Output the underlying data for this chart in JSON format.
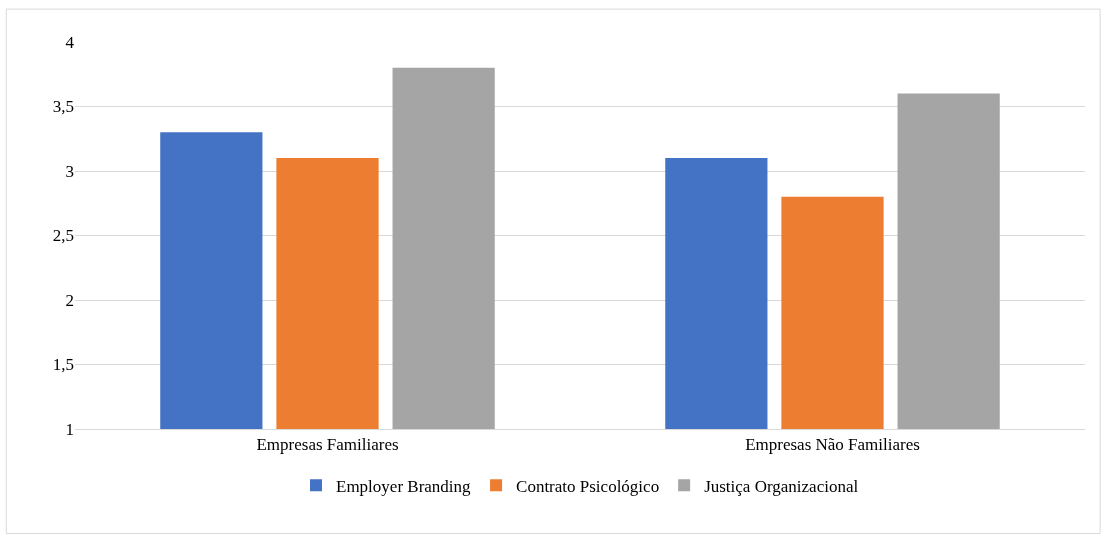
{
  "chart_data": {
    "type": "bar",
    "categories": [
      "Empresas Familiares",
      "Empresas Não Familiares"
    ],
    "series": [
      {
        "name": "Employer Branding",
        "color": "#4472c4",
        "values": [
          3.3,
          3.1
        ]
      },
      {
        "name": "Contrato Psicológico",
        "color": "#ed7d31",
        "values": [
          3.1,
          2.8
        ]
      },
      {
        "name": "Justiça Organizacional",
        "color": "#a5a5a5",
        "values": [
          3.8,
          3.6
        ]
      }
    ],
    "ylim": [
      1,
      4
    ],
    "yticks": [
      1,
      {
        "value": 1.5,
        "label": "1,5"
      },
      2,
      {
        "value": 2.5,
        "label": "2,5"
      },
      3,
      {
        "value": 3.5,
        "label": "3,5"
      },
      4
    ],
    "grid": "y",
    "legend": "bottom"
  }
}
